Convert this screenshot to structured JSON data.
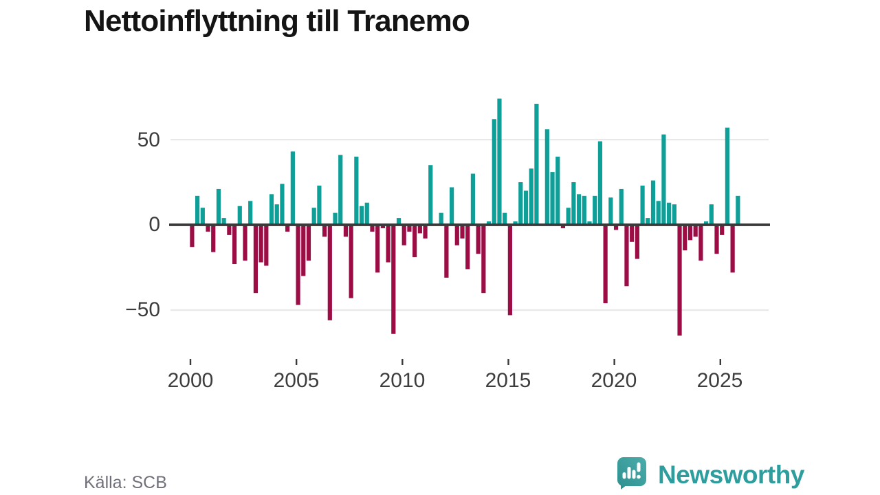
{
  "title": "Nettoinflyttning till Tranemo",
  "source": {
    "label": "Källa: SCB"
  },
  "logo": {
    "text": "Newsworthy",
    "icon": "speech-bubble-bar-chart-icon",
    "color": "#2d9d9d"
  },
  "colors": {
    "positive": "#0d9f98",
    "negative": "#9c0d46",
    "axis_line": "#3a3a3a",
    "gridline": "#e8e8e8",
    "tick_label": "#3d3d3d",
    "title_text": "#141414",
    "source_text": "#70707a"
  },
  "chart_data": {
    "type": "bar",
    "title": "Nettoinflyttning till Tranemo",
    "frequency": "quarterly",
    "x_start": "2000-Q1",
    "x_end": "2025-Q4",
    "values": [
      -13,
      17,
      10,
      -4,
      -16,
      21,
      4,
      -6,
      -23,
      11,
      -21,
      14,
      -40,
      -22,
      -24,
      18,
      12,
      24,
      -4,
      43,
      -47,
      -30,
      -21,
      10,
      23,
      -7,
      -56,
      7,
      41,
      -7,
      -43,
      40,
      11,
      13,
      -4,
      -28,
      -2,
      -22,
      -64,
      4,
      -12,
      -4,
      -19,
      -5,
      -8,
      35,
      0,
      7,
      -31,
      22,
      -12,
      -8,
      -26,
      30,
      -17,
      -40,
      2,
      62,
      74,
      7,
      -53,
      2,
      25,
      20,
      33,
      71,
      0,
      56,
      31,
      40,
      -2,
      10,
      25,
      18,
      17,
      2,
      17,
      49,
      -46,
      16,
      -3,
      21,
      -36,
      -10,
      -20,
      23,
      4,
      26,
      14,
      53,
      13,
      12,
      -65,
      -15,
      -9,
      -7,
      -21,
      2,
      12,
      -17,
      -6,
      57,
      -28,
      17
    ],
    "positive_color": "#0d9f98",
    "negative_color": "#9c0d46",
    "x_tick_labels": [
      "2000",
      "2005",
      "2010",
      "2015",
      "2020",
      "2025"
    ],
    "y_ticks": [
      50,
      0,
      -50
    ],
    "y_tick_labels": [
      "50",
      "0",
      "−50"
    ],
    "ylim": [
      -70,
      80
    ],
    "xlabel": "",
    "ylabel": "",
    "grid": "horizontal",
    "legend": "none",
    "source": "Källa: SCB"
  }
}
